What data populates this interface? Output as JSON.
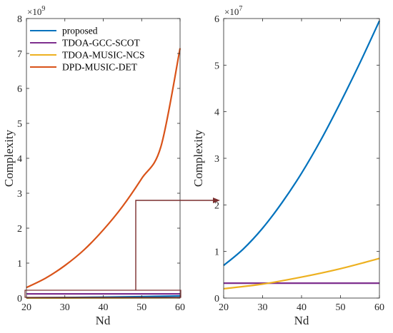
{
  "chart_data": [
    {
      "type": "line",
      "panel": "left",
      "xlabel": "Nd",
      "ylabel": "Complexity",
      "y_exponent": "×10",
      "y_exponent_power": "9",
      "xlim": [
        20,
        60
      ],
      "ylim": [
        0,
        8
      ],
      "xticks": [
        "20",
        "30",
        "40",
        "50",
        "60"
      ],
      "yticks": [
        "0",
        "1",
        "2",
        "3",
        "4",
        "5",
        "6",
        "7",
        "8"
      ],
      "grid": false,
      "legend_position": "top-left",
      "series": [
        {
          "name": "proposed",
          "color": "#0072BD",
          "x": [
            20,
            30,
            40,
            50,
            60
          ],
          "y": [
            0.007,
            0.016,
            0.027,
            0.042,
            0.06
          ]
        },
        {
          "name": "TDOA-GCC-SCOT",
          "color": "#7E2F8E",
          "x": [
            20,
            60
          ],
          "y": [
            0.12,
            0.12
          ]
        },
        {
          "name": "TDOA-MUSIC-NCS",
          "color": "#EDB120",
          "x": [
            20,
            30,
            40,
            50,
            60
          ],
          "y": [
            0.002,
            0.003,
            0.0045,
            0.0065,
            0.0085
          ]
        },
        {
          "name": "DPD-MUSIC-DET",
          "color": "#D95319",
          "x": [
            20,
            25,
            30,
            35,
            40,
            45,
            50,
            55,
            60
          ],
          "y": [
            0.3,
            0.57,
            0.93,
            1.38,
            1.95,
            2.62,
            3.42,
            4.33,
            7.15
          ]
        }
      ]
    },
    {
      "type": "line",
      "panel": "right",
      "xlabel": "Nd",
      "ylabel": "Complexity",
      "y_exponent": "×10",
      "y_exponent_power": "7",
      "xlim": [
        20,
        60
      ],
      "ylim": [
        0,
        6
      ],
      "xticks": [
        "20",
        "30",
        "40",
        "50",
        "60"
      ],
      "yticks": [
        "0",
        "1",
        "2",
        "3",
        "4",
        "5",
        "6"
      ],
      "grid": false,
      "series": [
        {
          "name": "proposed",
          "color": "#0072BD",
          "x": [
            20,
            25,
            30,
            35,
            40,
            45,
            50,
            55,
            60
          ],
          "y": [
            0.7,
            1.05,
            1.5,
            2.05,
            2.68,
            3.4,
            4.2,
            5.05,
            5.95
          ]
        },
        {
          "name": "TDOA-GCC-SCOT",
          "color": "#7E2F8E",
          "x": [
            20,
            60
          ],
          "y": [
            0.32,
            0.32
          ]
        },
        {
          "name": "TDOA-MUSIC-NCS",
          "color": "#EDB120",
          "x": [
            20,
            30,
            40,
            50,
            60
          ],
          "y": [
            0.2,
            0.3,
            0.45,
            0.63,
            0.85
          ]
        }
      ]
    }
  ]
}
